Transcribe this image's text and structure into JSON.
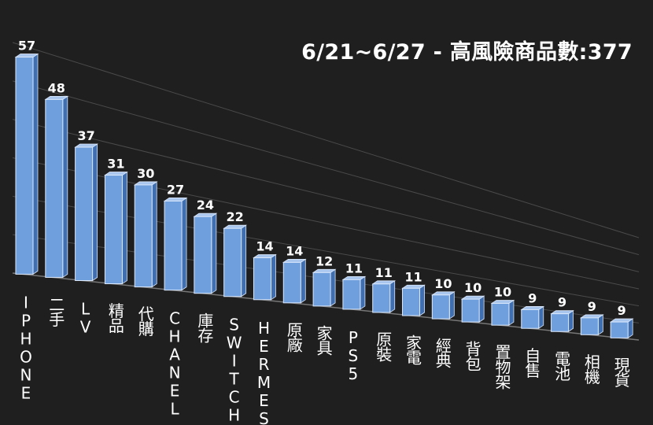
{
  "chart_data": {
    "type": "bar",
    "title": "6/21~6/27 - 高風險商品數:377",
    "xlabel": "",
    "ylabel": "",
    "ylim": [
      0,
      60
    ],
    "grid": true,
    "legend": "none",
    "categories": [
      "IPHONE",
      "二手",
      "LV",
      "精品",
      "代購",
      "CHANEL",
      "庫存",
      "SWITCH",
      "HERMES",
      "原廠",
      "家具",
      "PS5",
      "原裝",
      "家電",
      "經典",
      "背包",
      "置物架",
      "自售",
      "電池",
      "相機",
      "現貨"
    ],
    "values": [
      57,
      48,
      37,
      31,
      30,
      27,
      24,
      22,
      14,
      14,
      12,
      11,
      11,
      11,
      10,
      10,
      10,
      9,
      9,
      9,
      9
    ],
    "colors": {
      "background": "#1f1f1f",
      "bar_front": "#6f9fdc",
      "bar_side": "#3f6fb0",
      "bar_top": "#a8c6ee",
      "bar_edge": "#dbe8fb",
      "text": "#ffffff",
      "grid": "#4a4a4a"
    }
  }
}
